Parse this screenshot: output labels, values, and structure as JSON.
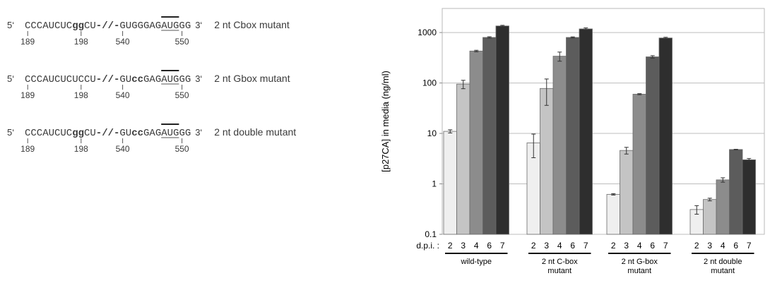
{
  "sequences": {
    "prime5": "5‘",
    "prime3": "3‘",
    "break_glyph": "-//-",
    "rows": [
      {
        "mutant_label": "2 nt Cbox mutant",
        "left": [
          {
            "t": "CCCAUCUC",
            "b": false
          },
          {
            "t": "gg",
            "b": true
          },
          {
            "t": "CU",
            "b": false
          }
        ],
        "right": [
          {
            "t": "GUGGGAG",
            "b": false
          },
          {
            "t": "AUG",
            "b": false,
            "u": true
          },
          {
            "t": "GG",
            "b": false
          }
        ],
        "positions": [
          "189",
          "198",
          "540",
          "550"
        ]
      },
      {
        "mutant_label": "2 nt Gbox mutant",
        "left": [
          {
            "t": "CCCAUCUCUCCU",
            "b": false
          }
        ],
        "right": [
          {
            "t": "GU",
            "b": false
          },
          {
            "t": "cc",
            "b": true
          },
          {
            "t": "GAG",
            "b": false
          },
          {
            "t": "AUG",
            "b": false,
            "u": true
          },
          {
            "t": "GG",
            "b": false
          }
        ],
        "positions": [
          "189",
          "198",
          "540",
          "550"
        ]
      },
      {
        "mutant_label": "2 nt double mutant",
        "left": [
          {
            "t": "CCCAUCUC",
            "b": false
          },
          {
            "t": "gg",
            "b": true
          },
          {
            "t": "CU",
            "b": false
          }
        ],
        "right": [
          {
            "t": "GU",
            "b": false
          },
          {
            "t": "cc",
            "b": true
          },
          {
            "t": "GAG",
            "b": false
          },
          {
            "t": "AUG",
            "b": false,
            "u": true
          },
          {
            "t": "GG",
            "b": false
          }
        ],
        "positions": [
          "189",
          "198",
          "540",
          "550"
        ]
      }
    ]
  },
  "chart_data": {
    "type": "bar",
    "ylabel": "[p27CA] in media (ng/ml)",
    "yscale": "log",
    "ylim": [
      0.1,
      3000
    ],
    "yticks": [
      "0.1",
      "1",
      "10",
      "100",
      "1000"
    ],
    "ytick_values": [
      0.1,
      1,
      10,
      100,
      1000
    ],
    "grid": true,
    "dpi_label": "d.p.i. :",
    "dpi_days": [
      "2",
      "3",
      "4",
      "6",
      "7"
    ],
    "bar_colors": [
      "#efefef",
      "#c4c4c4",
      "#8c8c8c",
      "#5c5c5c",
      "#2e2e2e"
    ],
    "groups": [
      {
        "label_lines": [
          "wild-type"
        ],
        "values": [
          11,
          95,
          430,
          800,
          1350
        ],
        "errors": [
          0.8,
          18,
          15,
          25,
          40
        ]
      },
      {
        "label_lines": [
          "2 nt C-box",
          "mutant"
        ],
        "values": [
          6.5,
          78,
          340,
          800,
          1180
        ],
        "errors": [
          3.2,
          42,
          70,
          20,
          55
        ]
      },
      {
        "label_lines": [
          "2 nt G-box",
          "mutant"
        ],
        "values": [
          0.62,
          4.6,
          60,
          330,
          780
        ],
        "errors": [
          0.02,
          0.7,
          1.5,
          18,
          25
        ]
      },
      {
        "label_lines": [
          "2 nt double",
          "mutant"
        ],
        "values": [
          0.31,
          0.49,
          1.2,
          4.8,
          3.0
        ],
        "errors": [
          0.06,
          0.03,
          0.12,
          0.05,
          0.18
        ]
      }
    ]
  }
}
